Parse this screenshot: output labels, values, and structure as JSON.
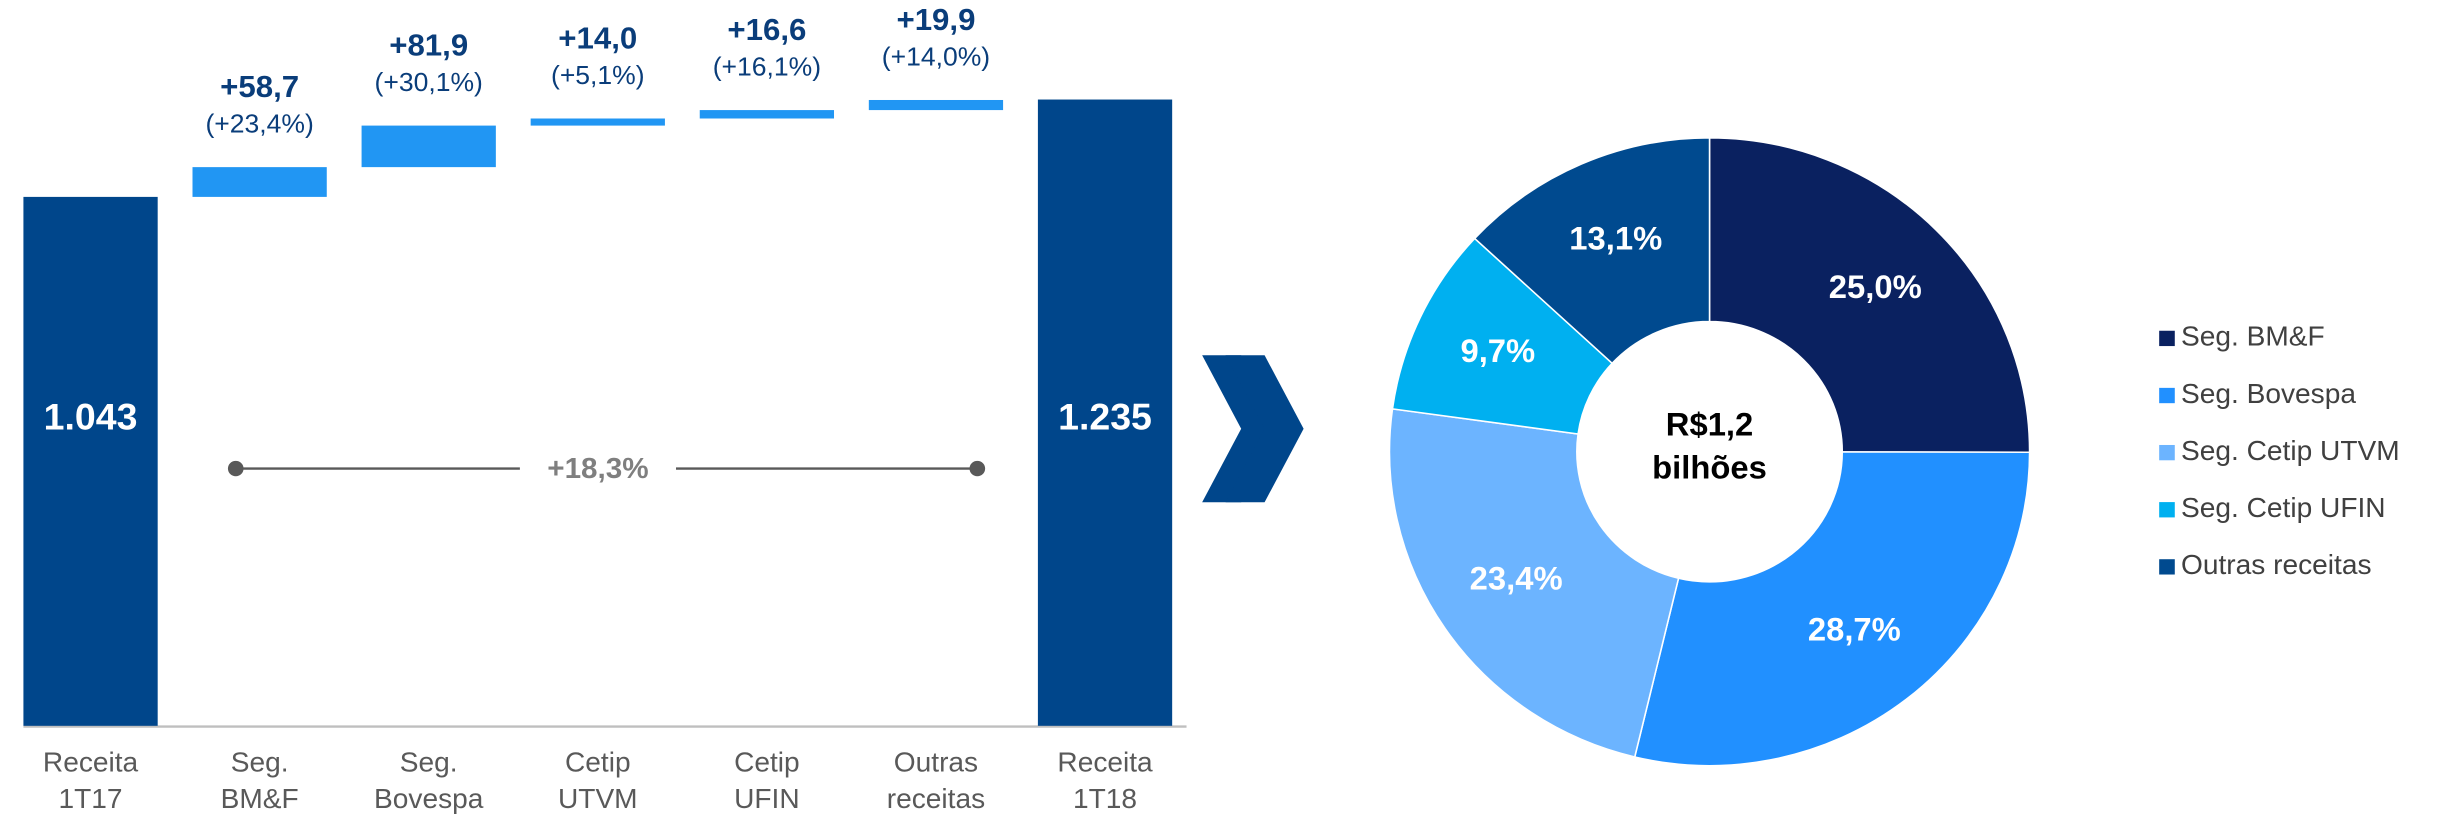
{
  "chart_data": [
    {
      "type": "waterfall",
      "categories": [
        [
          "Receita",
          "1T17"
        ],
        [
          "Seg.",
          "BM&F"
        ],
        [
          "Seg.",
          "Bovespa"
        ],
        [
          "Cetip",
          "UTVM"
        ],
        [
          "Cetip",
          "UFIN"
        ],
        [
          "Outras",
          "receitas"
        ],
        [
          "Receita",
          "1T18"
        ]
      ],
      "values": [
        1043,
        58.7,
        81.9,
        14.0,
        16.6,
        19.9,
        1235
      ],
      "value_labels": [
        "1.043",
        "+58,7",
        "+81,9",
        "+14,0",
        "+16,6",
        "+19,9",
        "1.235"
      ],
      "percent_labels": [
        null,
        "(+23,4%)",
        "(+30,1%)",
        "(+5,1%)",
        "(+16,1%)",
        "(+14,0%)",
        null
      ],
      "total_color": "#00468b",
      "increase_color": "#2196f3",
      "annotation": "+18,3%"
    },
    {
      "type": "pie",
      "center_text": [
        "R$1,2",
        "bilhões"
      ],
      "categories": [
        "Seg. BM&F",
        "Seg. Bovespa",
        "Seg. Cetip UTVM",
        "Seg. Cetip UFIN",
        "Outras receitas"
      ],
      "values": [
        25.0,
        28.7,
        23.4,
        9.7,
        13.1
      ],
      "value_labels": [
        "25,0%",
        "28,7%",
        "23,4%",
        "9,7%",
        "13,1%"
      ],
      "colors": [
        "#0a2160",
        "#2190ff",
        "#6cb4ff",
        "#00b0f0",
        "#004a8f"
      ]
    }
  ]
}
